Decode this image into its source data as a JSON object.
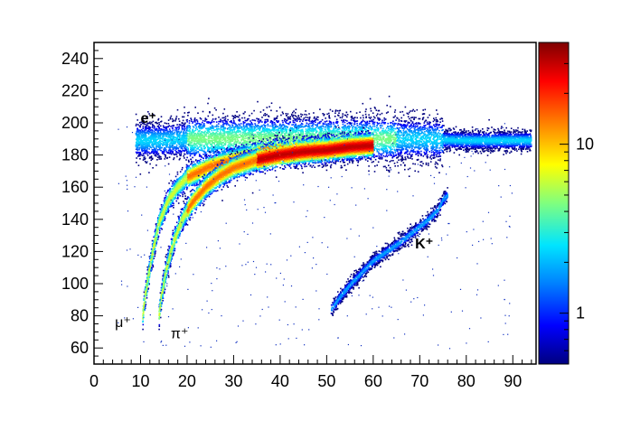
{
  "chart_data": {
    "type": "heatmap",
    "title": "",
    "xlabel": "",
    "ylabel": "",
    "xlim": [
      0,
      95
    ],
    "ylim": [
      50,
      250
    ],
    "x_ticks": [
      0,
      10,
      20,
      30,
      40,
      50,
      60,
      70,
      80,
      90
    ],
    "y_ticks": [
      60,
      80,
      100,
      120,
      140,
      160,
      180,
      200,
      220,
      240
    ],
    "colorbar": {
      "scale": "log",
      "range": [
        0.5,
        40
      ],
      "ticks": [
        1,
        10
      ],
      "colors": [
        "#00007f",
        "#0000ff",
        "#0080ff",
        "#00e5ff",
        "#7fff7f",
        "#ffff00",
        "#ff8000",
        "#ff0000",
        "#7f0000"
      ]
    },
    "annotations": [
      {
        "text": "e⁺",
        "x": 10,
        "y": 200
      },
      {
        "text": "μ⁺",
        "x": 4.5,
        "y": 73
      },
      {
        "text": "π⁺",
        "x": 16.5,
        "y": 66
      },
      {
        "text": "K⁺",
        "x": 69,
        "y": 122
      }
    ],
    "bands": [
      {
        "name": "e⁺",
        "points": [
          [
            9,
            189
          ],
          [
            15,
            189
          ],
          [
            20,
            190
          ],
          [
            25,
            190
          ],
          [
            30,
            190
          ],
          [
            40,
            190
          ],
          [
            50,
            190
          ],
          [
            60,
            190
          ],
          [
            70,
            190
          ],
          [
            80,
            189
          ],
          [
            90,
            189
          ],
          [
            94,
            189
          ]
        ],
        "peak": 3
      },
      {
        "name": "μ⁺",
        "points": [
          [
            10.5,
            80
          ],
          [
            11,
            92
          ],
          [
            12,
            110
          ],
          [
            13,
            125
          ],
          [
            14,
            138
          ],
          [
            16,
            152
          ],
          [
            18,
            160
          ],
          [
            20,
            166
          ],
          [
            25,
            173
          ],
          [
            30,
            177
          ],
          [
            35,
            180
          ],
          [
            40,
            182
          ],
          [
            45,
            183
          ],
          [
            50,
            184
          ],
          [
            55,
            185
          ],
          [
            60,
            186
          ]
        ],
        "peak": 25
      },
      {
        "name": "π⁺",
        "points": [
          [
            14,
            80
          ],
          [
            14.5,
            92
          ],
          [
            15.5,
            108
          ],
          [
            17,
            125
          ],
          [
            19,
            140
          ],
          [
            21,
            150
          ],
          [
            24,
            160
          ],
          [
            27,
            167
          ],
          [
            30,
            172
          ],
          [
            35,
            177
          ],
          [
            40,
            180
          ],
          [
            45,
            182
          ],
          [
            50,
            183
          ],
          [
            55,
            185
          ],
          [
            60,
            186
          ]
        ],
        "peak": 25
      },
      {
        "name": "K⁺",
        "points": [
          [
            51,
            84
          ],
          [
            53,
            92
          ],
          [
            55,
            99
          ],
          [
            58,
            108
          ],
          [
            60,
            114
          ],
          [
            63,
            120
          ],
          [
            66,
            126
          ],
          [
            69,
            133
          ],
          [
            72,
            140
          ],
          [
            74,
            146
          ],
          [
            75,
            152
          ],
          [
            76,
            155
          ]
        ],
        "peak": 2
      }
    ]
  }
}
